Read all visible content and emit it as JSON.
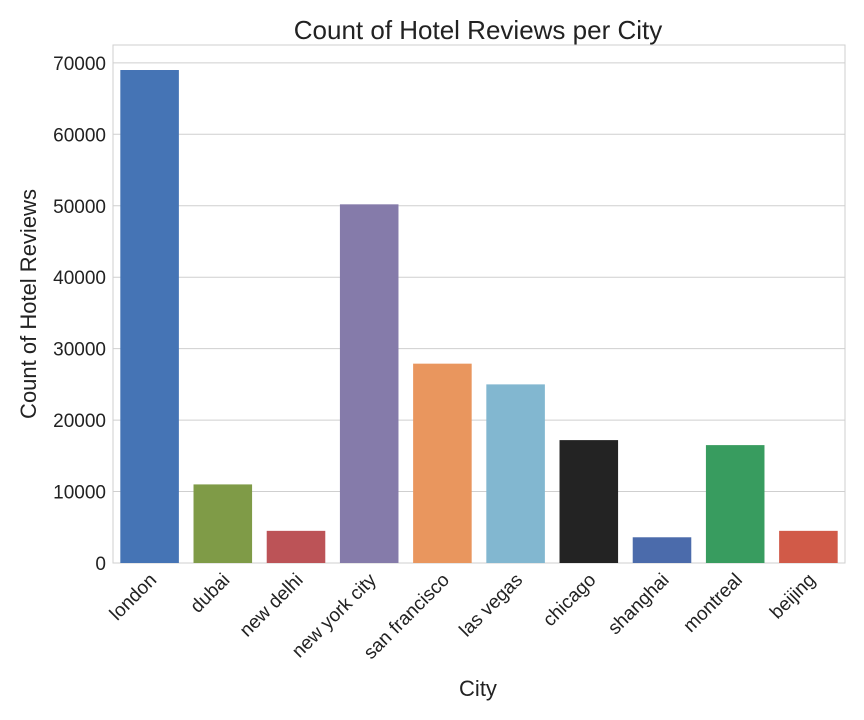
{
  "chart_data": {
    "type": "bar",
    "title": "Count of Hotel Reviews per City",
    "xlabel": "City",
    "ylabel": "Count of Hotel Reviews",
    "categories": [
      "london",
      "dubai",
      "new delhi",
      "new york city",
      "san francisco",
      "las vegas",
      "chicago",
      "shanghai",
      "montreal",
      "beijing"
    ],
    "values": [
      69000,
      11000,
      4500,
      50200,
      27900,
      25000,
      17200,
      3600,
      16500,
      4500
    ],
    "colors": [
      "#4574b5",
      "#7f9b47",
      "#bc5357",
      "#857baa",
      "#e9965e",
      "#82b7d0",
      "#232323",
      "#4b6bab",
      "#389c5f",
      "#d15a48"
    ],
    "ylim": [
      0,
      72500
    ],
    "yticks": [
      0,
      10000,
      20000,
      30000,
      40000,
      50000,
      60000,
      70000
    ],
    "grid": true
  }
}
